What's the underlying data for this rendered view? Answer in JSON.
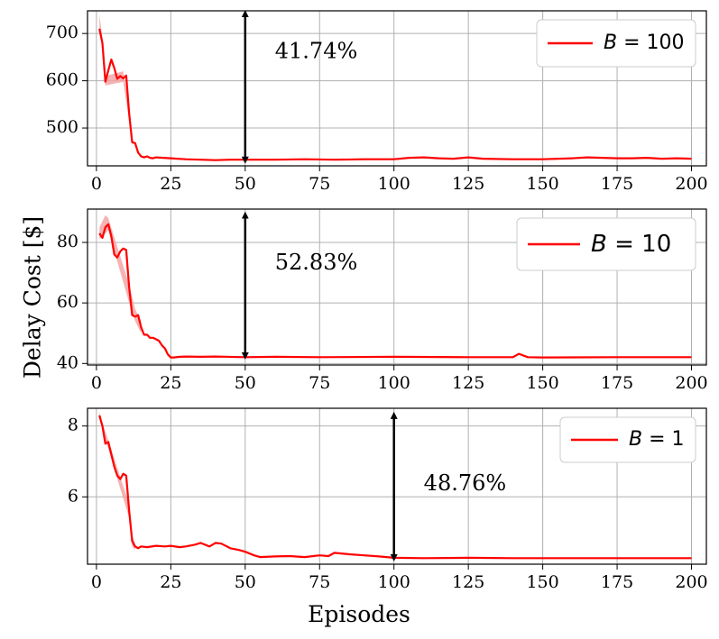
{
  "figure": {
    "ylabel": "Delay Cost [$]",
    "xlabel": "Episodes",
    "accent_color": "#ff0000",
    "shade_color": "#f4a0a0"
  },
  "chart_data": [
    {
      "type": "line",
      "title": "",
      "xlim": [
        -3,
        205
      ],
      "ylim": [
        420,
        748
      ],
      "x_ticks": [
        0,
        25,
        50,
        75,
        100,
        125,
        150,
        175,
        200
      ],
      "x_tick_labels": [
        "0",
        "25",
        "50",
        "75",
        "100",
        "125",
        "150",
        "175",
        "200"
      ],
      "y_ticks": [
        500,
        600,
        700
      ],
      "y_tick_labels": [
        "500",
        "600",
        "700"
      ],
      "grid": true,
      "legend_position": "top-right",
      "series": [
        {
          "name": "B = 100",
          "legend_var": "B",
          "legend_value": "= 100",
          "color": "#ff0000",
          "x": [
            1,
            2,
            3,
            4,
            5,
            6,
            7,
            8,
            9,
            10,
            11,
            12,
            13,
            14,
            15,
            16,
            17,
            18,
            19,
            20,
            25,
            30,
            35,
            40,
            45,
            50,
            60,
            70,
            80,
            90,
            100,
            105,
            110,
            115,
            120,
            125,
            130,
            140,
            150,
            160,
            165,
            170,
            175,
            180,
            185,
            190,
            195,
            200
          ],
          "y": [
            710,
            680,
            598,
            622,
            645,
            627,
            604,
            610,
            605,
            611,
            530,
            470,
            468,
            448,
            440,
            438,
            440,
            437,
            436,
            438,
            436,
            434,
            433,
            432,
            433,
            433,
            433,
            434,
            433,
            434,
            434,
            437,
            438,
            436,
            435,
            438,
            435,
            434,
            434,
            436,
            438,
            437,
            436,
            436,
            437,
            435,
            436,
            435
          ]
        }
      ],
      "shade": {
        "x": [
          1,
          2,
          3,
          9,
          11,
          12
        ],
        "y_high": [
          740,
          690,
          610,
          620,
          545,
          480
        ],
        "y_low": [
          700,
          670,
          590,
          598,
          515,
          460
        ]
      },
      "annotation": {
        "label": "41.74%",
        "arrow_x": 50,
        "arrow_y_from": 432,
        "arrow_y_to": 742,
        "text_x": 60,
        "text_y": 660
      }
    },
    {
      "type": "line",
      "title": "",
      "xlim": [
        -3,
        205
      ],
      "ylim": [
        39.5,
        91
      ],
      "x_ticks": [
        0,
        25,
        50,
        75,
        100,
        125,
        150,
        175,
        200
      ],
      "x_tick_labels": [
        "0",
        "25",
        "50",
        "75",
        "100",
        "125",
        "150",
        "175",
        "200"
      ],
      "y_ticks": [
        40,
        60,
        80
      ],
      "y_tick_labels": [
        "40",
        "60",
        "80"
      ],
      "grid": true,
      "legend_position": "top-right",
      "series": [
        {
          "name": "B = 10",
          "legend_var": "B",
          "legend_value": "= 10",
          "color": "#ff0000",
          "x": [
            1,
            2,
            3,
            4,
            5,
            6,
            7,
            8,
            9,
            10,
            11,
            12,
            13,
            14,
            15,
            16,
            17,
            18,
            19,
            20,
            21,
            22,
            23,
            24,
            25,
            26,
            28,
            30,
            35,
            40,
            50,
            60,
            75,
            100,
            125,
            140,
            142,
            145,
            150,
            175,
            200
          ],
          "y": [
            83,
            81.5,
            85,
            86,
            82,
            76,
            75,
            77,
            78,
            77.5,
            65,
            56,
            55.5,
            56,
            52,
            49.5,
            49.5,
            48.5,
            48.5,
            48,
            47.5,
            46,
            45,
            43,
            42,
            42,
            42.2,
            42.3,
            42.2,
            42.3,
            42.1,
            42.2,
            42.1,
            42.2,
            42.1,
            42.1,
            43.2,
            42.1,
            42.0,
            42.1,
            42.1
          ]
        }
      ],
      "shade": {
        "x": [
          1,
          3,
          4,
          11,
          13,
          15
        ],
        "y_high": [
          85,
          89,
          88,
          66,
          58,
          54
        ],
        "y_low": [
          81,
          83,
          84,
          60,
          54,
          50
        ]
      },
      "annotation": {
        "label": "52.83%",
        "arrow_x": 50,
        "arrow_y_from": 42.5,
        "arrow_y_to": 89,
        "text_x": 60,
        "text_y": 73
      }
    },
    {
      "type": "line",
      "title": "",
      "xlim": [
        -3,
        205
      ],
      "ylim": [
        4.1,
        8.5
      ],
      "x_ticks": [
        0,
        25,
        50,
        75,
        100,
        125,
        150,
        175,
        200
      ],
      "x_tick_labels": [
        "0",
        "25",
        "50",
        "75",
        "100",
        "125",
        "150",
        "175",
        "200"
      ],
      "y_ticks": [
        6,
        8
      ],
      "y_tick_labels": [
        "6",
        "8"
      ],
      "grid": true,
      "legend_position": "top-right",
      "series": [
        {
          "name": "B = 1",
          "legend_var": "B",
          "legend_value": "= 1",
          "color": "#ff0000",
          "x": [
            1,
            2,
            3,
            4,
            5,
            6,
            7,
            8,
            9,
            10,
            11,
            12,
            13,
            14,
            15,
            17,
            20,
            23,
            25,
            28,
            30,
            33,
            35,
            38,
            40,
            42,
            45,
            48,
            50,
            53,
            55,
            60,
            65,
            70,
            75,
            78,
            80,
            85,
            90,
            95,
            100,
            110,
            125,
            140,
            150,
            175,
            200
          ],
          "y": [
            8.3,
            8.0,
            7.5,
            7.55,
            7.2,
            6.85,
            6.6,
            6.5,
            6.65,
            6.6,
            5.6,
            4.75,
            4.6,
            4.55,
            4.6,
            4.58,
            4.62,
            4.6,
            4.62,
            4.58,
            4.6,
            4.65,
            4.7,
            4.6,
            4.7,
            4.68,
            4.55,
            4.5,
            4.45,
            4.35,
            4.3,
            4.32,
            4.33,
            4.3,
            4.35,
            4.33,
            4.42,
            4.38,
            4.35,
            4.32,
            4.28,
            4.27,
            4.28,
            4.27,
            4.27,
            4.27,
            4.27
          ]
        }
      ],
      "shade": {
        "x": [
          1,
          2,
          11,
          12,
          13
        ],
        "y_high": [
          8.4,
          8.1,
          5.8,
          4.9,
          4.7
        ],
        "y_low": [
          8.2,
          7.9,
          5.4,
          4.6,
          4.5
        ]
      },
      "annotation": {
        "label": "48.76%",
        "arrow_x": 100,
        "arrow_y_from": 4.28,
        "arrow_y_to": 8.3,
        "text_x": 110,
        "text_y": 6.35
      }
    }
  ]
}
